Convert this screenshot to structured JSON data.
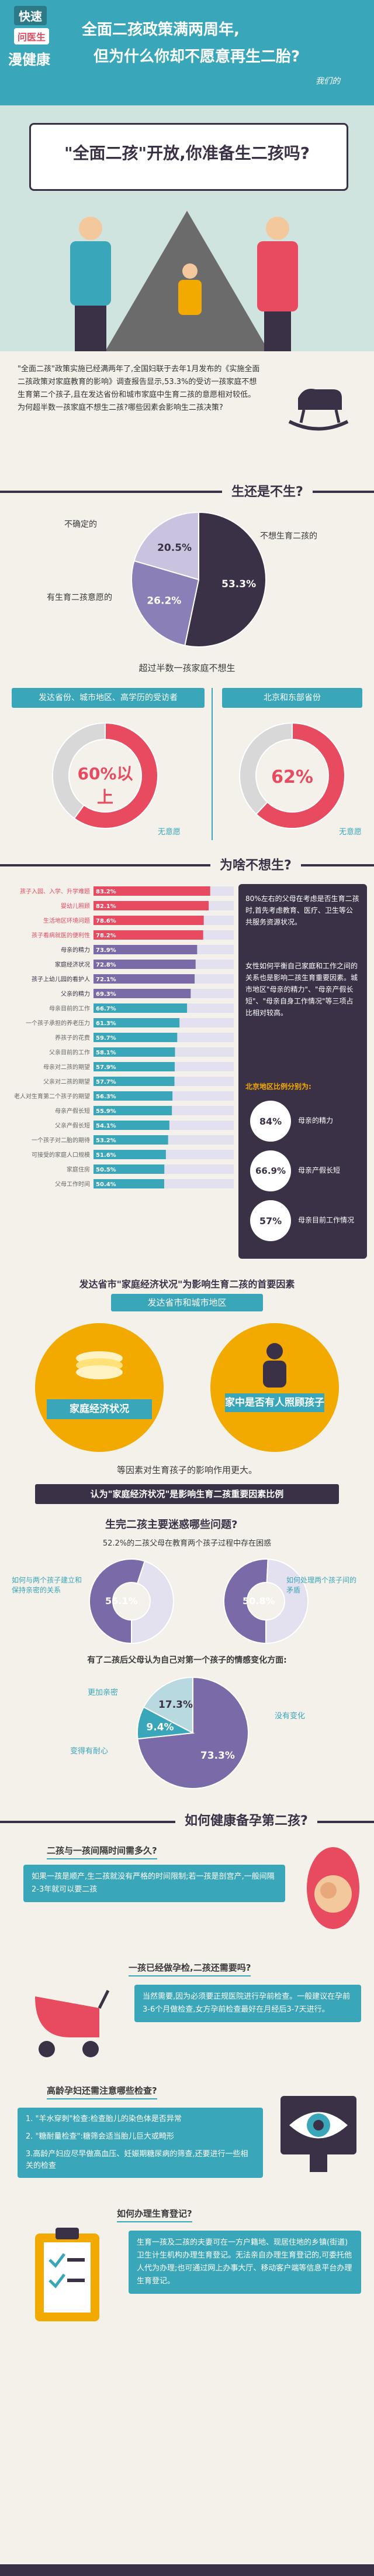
{
  "header": {
    "brand_line1": "快速",
    "brand_line2": "问医生",
    "brand_line3": "漫健康",
    "title_line1": "全面二孩政策满两周年,",
    "title_line2": "但为什么你却不愿意再生二胎?",
    "banner_text": "\"全面二孩\"开放,你准备生二孩吗?",
    "tagline": "我们的"
  },
  "intro": {
    "text": "\"全面二孩\"政策实施已经满两年了,全国妇联于去年1月发布的《实施全面二孩政策对家庭教育的影响》调查报告显示,53.3%的受访一孩家庭不想生育第二个孩子,且在发达省份和城市家庭中生育二孩的意愿相对较低。为何超半数一孩家庭不想生二孩?哪些因素会影响生二孩决策?"
  },
  "section1": {
    "title": "生还是不生?",
    "labels": [
      "不确定的",
      "不想生育二孩的",
      "有生育二孩意愿的"
    ],
    "caption": "超过半数一孩家庭不想生",
    "left_header": "发达省份、城市地区、高学历的受访者",
    "right_header": "北京和东部省份",
    "left_caption": "无意愿",
    "right_caption": "无意愿",
    "left_value": "60%以上",
    "right_value": "62%"
  },
  "chart_data": [
    {
      "type": "pie",
      "title": "",
      "categories": [
        "不想生育二孩的",
        "有生育二孩意愿的",
        "不确定的"
      ],
      "values": [
        53.3,
        26.2,
        20.5
      ],
      "colors": [
        "#3a3146",
        "#8b7fb8",
        "#c9c3e0"
      ]
    },
    {
      "type": "pie",
      "title": "",
      "categories": [
        "无意愿",
        "其他"
      ],
      "values": [
        60,
        40
      ],
      "colors": [
        "#e84a5f",
        "#d8d8d8"
      ]
    },
    {
      "type": "pie",
      "title": "",
      "categories": [
        "无意愿",
        "其他"
      ],
      "values": [
        62,
        38
      ],
      "colors": [
        "#e84a5f",
        "#d8d8d8"
      ]
    },
    {
      "type": "bar",
      "title": "",
      "categories": [
        "孩子入园、入学、升学难题",
        "婴幼儿照顾",
        "生活地区环境问题",
        "孩子看病就医的便利性",
        "母亲的精力",
        "家庭经济状况",
        "孩子上幼儿园的看护人",
        "父亲的精力",
        "母亲目前的工作",
        "一个孩子承担的养老压力",
        "养孩子的花费",
        "父亲目前的工作",
        "母亲对二孩的期望",
        "父亲对二孩的期望",
        "老人对生育第二个孩子的期望",
        "母亲产假长短",
        "父亲产假长短",
        "一个孩子对二胎的期待",
        "可接受的家庭人口规模",
        "家庭住房",
        "父母工作时间"
      ],
      "values": [
        83.2,
        82.1,
        78.6,
        78.2,
        73.9,
        72.8,
        72.1,
        69.3,
        66.7,
        61.3,
        59.7,
        58.1,
        57.9,
        57.7,
        56.3,
        55.9,
        54.1,
        53.2,
        51.6,
        50.5,
        50.4
      ],
      "xlim": [
        0,
        100
      ]
    },
    {
      "type": "pie",
      "title": "",
      "categories": [
        "如何与两个孩子建立和保持亲密的关系",
        "其他"
      ],
      "values": [
        55.1,
        44.9
      ],
      "colors": [
        "#7a6aa8",
        "#e3e0ef"
      ]
    },
    {
      "type": "pie",
      "title": "",
      "categories": [
        "如何处理两个孩子间的矛盾",
        "其他"
      ],
      "values": [
        50.8,
        49.2
      ],
      "colors": [
        "#7a6aa8",
        "#e3e0ef"
      ]
    },
    {
      "type": "pie",
      "title": "",
      "categories": [
        "没有变化",
        "变得有耐心",
        "更加亲密"
      ],
      "values": [
        73.3,
        9.4,
        17.3
      ],
      "colors": [
        "#7a6aa8",
        "#3aa6b9",
        "#b7d9df"
      ]
    }
  ],
  "section2": {
    "title": "为啥不想生?",
    "right_text1": "80%左右的父母在考虑是否生育二孩时,首先考虑教育、医疗、卫生等公共服务资源状况。",
    "right_text2": "女性如何平衡自己家庭和工作之间的关系也是影响二孩生育重要因素。城市地区\"母亲的精力\"、\"母亲产假长短\"、\"母亲自身工作情况\"等三项占比相对较高。",
    "right_text3": "北京地区比例分别为:",
    "stat_values": [
      "84%",
      "66.9%",
      "57%"
    ],
    "stat_labels": [
      "母亲的精力",
      "母亲产假长短",
      "母亲目前工作情况"
    ]
  },
  "section3": {
    "title": "发达省市\"家庭经济状况\"为影响生育二孩的首要因素",
    "subtitle": "发达省市和城市地区",
    "left_label": "家庭经济状况",
    "right_label": "家中是否有人照顾孩子",
    "caption": "等因素对生育孩子的影响作用更大。",
    "banner2": "认为\"家庭经济状况\"是影响生育二孩重要因素比例",
    "q_title": "生完二孩主要迷惑哪些问题?",
    "q_sub": "52.2%的二孩父母在教育两个孩子过程中存在困惑",
    "q_left": "如何与两个孩子建立和保持亲密的关系",
    "q_right": "如何处理两个孩子间的矛盾",
    "q_left_val": "55.1%",
    "q_right_val": "50.8%",
    "change_title": "有了二孩后父母认为自己对第一个孩子的情感变化方面:",
    "change_labels": [
      "更加亲密",
      "变得有耐心",
      "没有变化"
    ],
    "change_vals": [
      "17.3%",
      "9.4%",
      "73.3%"
    ]
  },
  "section4": {
    "title": "如何健康备孕第二孩?",
    "q1": "二孩与一孩间隔时间需多久?",
    "a1": "如果一孩是顺产,生二孩就没有严格的时间限制;若一孩是剖宫产,一般间隔2-3年就可以要二孩",
    "q2": "一孩已经做孕检,二孩还需要吗?",
    "a2": "当然需要,因为必须要正规医院进行孕前检查。一般建议在孕前3-6个月做检查,女方孕前检查最好在月经后3-7天进行。",
    "q3": "高龄孕妇还需注意哪些检查?",
    "items3": [
      "1. \"羊水穿刺\"检查:检查胎儿的染色体是否异常",
      "2. \"糖耐量检查\":糖筛会适当胎儿巨大或畸形",
      "3.高龄产妇应尽早做高血压、妊娠期糖尿病的筛查,还要进行一些相关的检查"
    ],
    "q4": "如何办理生育登记?",
    "a4": "生育一孩及二孩的夫妻可在一方户籍地、现居住地的乡镇(街道)卫生计生机构办理生育登记。无法亲自办理生育登记的,可委托他人代为办理;也可通过网上办事大厅、移动客户端等信息平台办理生育登记。"
  }
}
